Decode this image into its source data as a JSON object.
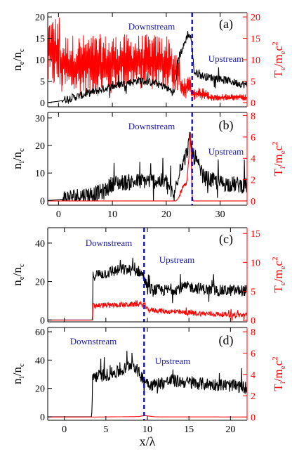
{
  "figure": {
    "xlabel_main": "x/λ",
    "downstream_label": "Downstream",
    "upstream_label": "Upstream",
    "colors": {
      "density": "#000000",
      "temperature": "#ff0000",
      "shock": "#0000cc",
      "stream_label": "#1a1aa6"
    }
  },
  "chart_data": [
    {
      "type": "line",
      "panel_label": "(a)",
      "ylabel_left": {
        "base": "n",
        "sub": "e",
        "mid": "/n",
        "sub2": "c"
      },
      "ylabel_right": {
        "base": "T",
        "sub": "e",
        "mid": "/m",
        "sub2": "e",
        "tail": "c",
        "sup": "2"
      },
      "x_range": [
        -2,
        35
      ],
      "x_ticks": [
        0,
        10,
        20,
        30
      ],
      "x_tick_labels": [],
      "ylim_left": [
        -1,
        21
      ],
      "ylim_right": [
        -1,
        21
      ],
      "y_ticks_left": [
        0,
        5,
        10,
        15,
        20
      ],
      "y_ticks_right": [
        0,
        5,
        10,
        15,
        20
      ],
      "shock_x": 24.8,
      "series": [
        {
          "axis": "right",
          "color": "#ff0000",
          "segments": [
            {
              "x0": -2,
              "x1": 0.2,
              "lo": 3,
              "hi": 20.5
            },
            {
              "x0": 0.2,
              "x1": 10,
              "lo": 1.5,
              "hi": 16
            },
            {
              "x0": 10,
              "x1": 21,
              "lo": 3,
              "hi": 16
            },
            {
              "x0": 21,
              "x1": 22.6,
              "lo": 2,
              "hi": 12
            },
            {
              "x0": 22.6,
              "x1": 24.6,
              "lo": 1,
              "hi": 6
            },
            {
              "x0": 24.6,
              "x1": 28,
              "lo": 0.6,
              "hi": 3.5
            },
            {
              "x0": 28,
              "x1": 35,
              "lo": 0.4,
              "hi": 2
            }
          ]
        },
        {
          "axis": "left",
          "color": "#000000",
          "x": [
            -2,
            0,
            4,
            8,
            12,
            15,
            18,
            20,
            21.5,
            22.3,
            23.2,
            24,
            24.6,
            25.2,
            27,
            30,
            33,
            35
          ],
          "y": [
            0,
            0.3,
            1.5,
            3,
            4.3,
            5.1,
            4.5,
            3.4,
            2.2,
            10.5,
            13,
            16,
            15,
            7,
            6,
            5.5,
            4.5,
            4
          ],
          "jitter": 0.9
        }
      ]
    },
    {
      "type": "line",
      "panel_label": "(b)",
      "ylabel_left": {
        "base": "n",
        "sub": "i",
        "mid": "/n",
        "sub2": "c"
      },
      "ylabel_right": {
        "base": "T",
        "sub": "i",
        "mid": "/m",
        "sub2": "e",
        "tail": "c",
        "sup": "2"
      },
      "x_range": [
        -2,
        35
      ],
      "x_ticks": [
        0,
        10,
        20,
        30
      ],
      "x_tick_labels": [
        "0",
        "10",
        "20",
        "30"
      ],
      "ylim_left": [
        -1.7,
        32
      ],
      "ylim_right": [
        -0.4,
        8.3
      ],
      "y_ticks_left": [
        0,
        10,
        20,
        30
      ],
      "y_ticks_right": [
        0,
        2,
        4,
        6,
        8
      ],
      "shock_x": 24.8,
      "series": [
        {
          "axis": "left",
          "color": "#000000",
          "x": [
            -2,
            0,
            4,
            7,
            8.5,
            10,
            14,
            17,
            20,
            21.5,
            22.5,
            23.5,
            24.4,
            25,
            27,
            30,
            33,
            35
          ],
          "y": [
            0,
            0.3,
            1.5,
            2.3,
            3,
            6,
            6.5,
            7,
            6.5,
            1,
            12,
            15,
            22,
            16,
            8,
            6,
            5.5,
            5
          ],
          "jitter": 3
        },
        {
          "axis": "right",
          "color": "#ff0000",
          "x": [
            -2,
            21.8,
            22.3,
            23,
            23.8,
            24.2,
            24.5,
            24.8,
            25,
            35
          ],
          "y": [
            0,
            0,
            0.3,
            1.2,
            1.6,
            4,
            6.5,
            0.5,
            0,
            0
          ],
          "jitter": 0.2
        }
      ]
    },
    {
      "type": "line",
      "panel_label": "(c)",
      "ylabel_left": {
        "base": "n",
        "sub": "e",
        "mid": "/n",
        "sub2": "c"
      },
      "ylabel_right": {
        "base": "T",
        "sub": "e",
        "mid": "/m",
        "sub2": "e",
        "tail": "c",
        "sup": "2"
      },
      "x_range": [
        -2,
        22
      ],
      "x_ticks": [
        0,
        5,
        10,
        15,
        20
      ],
      "x_tick_labels": [],
      "ylim_left": [
        -1,
        48
      ],
      "ylim_right": [
        -0.3,
        16
      ],
      "y_ticks_left": [
        0,
        20,
        40
      ],
      "y_ticks_right": [
        0,
        5,
        10,
        15
      ],
      "shock_x": 9.6,
      "series": [
        {
          "axis": "left",
          "color": "#000000",
          "x": [
            -2,
            3.4,
            3.45,
            5,
            7,
            9,
            9.6,
            10,
            12,
            15,
            18,
            20,
            22
          ],
          "y": [
            0,
            0,
            23,
            24,
            26,
            25,
            22,
            16,
            15,
            17,
            15,
            15,
            15
          ],
          "jitter": 3
        },
        {
          "axis": "right",
          "color": "#ff0000",
          "x": [
            -2,
            3.4,
            3.45,
            9.6,
            10,
            12,
            15,
            18,
            22
          ],
          "y": [
            0,
            0,
            2.5,
            2.7,
            1.8,
            1.5,
            1.2,
            1,
            0.8
          ],
          "jitter": 0.45
        }
      ]
    },
    {
      "type": "line",
      "panel_label": "(d)",
      "ylabel_left": {
        "base": "n",
        "sub": "i",
        "mid": "/n",
        "sub2": "c"
      },
      "ylabel_right": {
        "base": "T",
        "sub": "i",
        "mid": "/m",
        "sub2": "e",
        "tail": "c",
        "sup": "2"
      },
      "x_range": [
        -2,
        22
      ],
      "x_ticks": [
        0,
        5,
        10,
        15,
        20
      ],
      "x_tick_labels": [
        "0",
        "5",
        "10",
        "15",
        "20"
      ],
      "ylim_left": [
        -2.5,
        63
      ],
      "ylim_right": [
        -0.3,
        8.4
      ],
      "y_ticks_left": [
        0,
        20,
        40,
        60
      ],
      "y_ticks_right": [
        0,
        2,
        4,
        6,
        8
      ],
      "shock_x": 9.6,
      "series": [
        {
          "axis": "left",
          "color": "#000000",
          "x": [
            -2,
            3.3,
            3.4,
            5,
            7,
            8.2,
            9,
            9.6,
            10.5,
            13,
            16,
            19,
            22
          ],
          "y": [
            0,
            0,
            28,
            29,
            32,
            38,
            30,
            26,
            22,
            25,
            23,
            22,
            20
          ],
          "jitter": 4.5
        },
        {
          "axis": "right",
          "color": "#ff0000",
          "x": [
            -2,
            3.3,
            9,
            9.6,
            10.3,
            11,
            22
          ],
          "y": [
            0,
            0,
            0.05,
            0.15,
            0.08,
            0.02,
            0.01
          ],
          "jitter": 0.04
        }
      ]
    }
  ]
}
